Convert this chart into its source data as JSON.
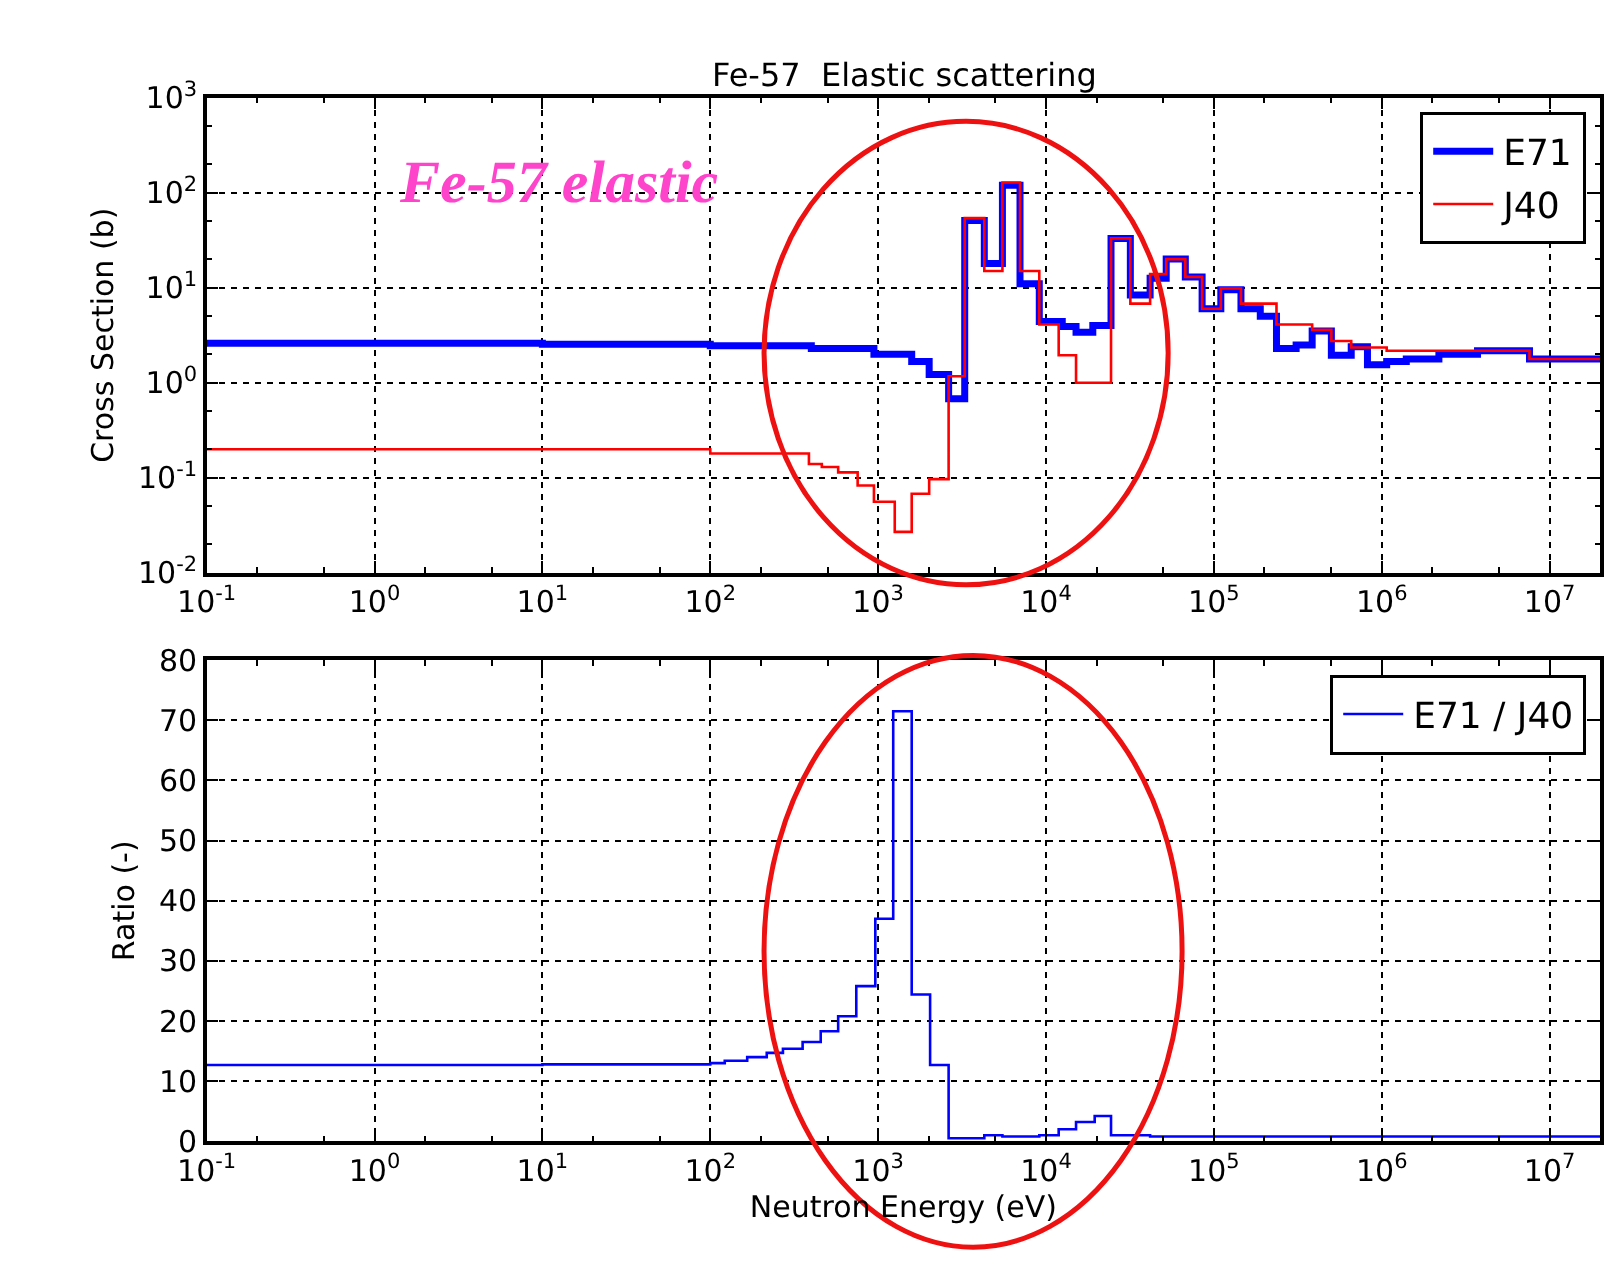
{
  "chart_data": [
    {
      "type": "step",
      "title": "Fe-57  Elastic scattering",
      "ylabel": "Cross Section (b)",
      "annotations": [
        "Fe-57 elastic"
      ],
      "series": [
        {
          "name": "E71",
          "color": "#0000ff",
          "x": [
            0.1,
            10,
            100,
            400,
            944,
            1585,
            2014,
            2630,
            3280,
            4290,
            5500,
            7000,
            9120,
            12500,
            15100,
            19000,
            24400,
            31800,
            41700,
            52000,
            67600,
            85100,
            110000,
            145000,
            189000,
            236000,
            309000,
            385000,
            501000,
            658000,
            822000,
            1070000,
            1400000,
            2190000,
            3720000,
            7590000,
            20000000
          ],
          "values": [
            2.6,
            2.55,
            2.45,
            2.3,
            2.0,
            1.67,
            1.22,
            0.68,
            51,
            18,
            120,
            11,
            4.4,
            3.9,
            3.4,
            4.0,
            33,
            8.4,
            12.6,
            20,
            13,
            6.0,
            9.5,
            6.0,
            5.0,
            2.3,
            2.5,
            3.5,
            1.95,
            2.4,
            1.55,
            1.67,
            1.78,
            2.0,
            2.17,
            1.78,
            1.78
          ]
        },
        {
          "name": "J40",
          "color": "#ff0000",
          "x": [
            0.1,
            10,
            100,
            387,
            462,
            578,
            755,
            944,
            1256,
            1585,
            2014,
            2630,
            3280,
            4290,
            5500,
            7000,
            9120,
            11900,
            15100,
            24400,
            31800,
            41700,
            52000,
            67600,
            85100,
            110000,
            145000,
            236000,
            385000,
            501000,
            658000,
            1070000,
            7590000,
            20000000
          ],
          "values": [
            0.2,
            0.2,
            0.18,
            0.14,
            0.13,
            0.114,
            0.083,
            0.056,
            0.027,
            0.068,
            0.097,
            1.17,
            54,
            15,
            128,
            15,
            4.1,
            1.95,
            1.0,
            33,
            6.8,
            13.9,
            20,
            13,
            6.0,
            9.8,
            6.8,
            4.1,
            3.6,
            2.75,
            2.35,
            2.17,
            1.78,
            1.78
          ]
        }
      ],
      "xlim": [
        0.1,
        20000000
      ],
      "xticks": [
        {
          "value": 0.1,
          "label": "10$^{-1}$"
        },
        {
          "value": 1,
          "label": "10$^{0}$"
        },
        {
          "value": 10,
          "label": "10$^{1}$"
        },
        {
          "value": 100,
          "label": "10$^{2}$"
        },
        {
          "value": 1000,
          "label": "10$^{3}$"
        },
        {
          "value": 10000,
          "label": "10$^{4}$"
        },
        {
          "value": 100000,
          "label": "10$^{5}$"
        },
        {
          "value": 1000000,
          "label": "10$^{6}$"
        },
        {
          "value": 10000000,
          "label": "10$^{7}$"
        }
      ],
      "ylim": [
        0.01,
        1000
      ],
      "yticks": [
        {
          "value": 0.01,
          "label": "10$^{-2}$"
        },
        {
          "value": 0.1,
          "label": "10$^{-1}$"
        },
        {
          "value": 1,
          "label": "10$^{0}$"
        },
        {
          "value": 10,
          "label": "10$^{1}$"
        },
        {
          "value": 100,
          "label": "10$^{2}$"
        },
        {
          "value": 1000,
          "label": "10$^{3}$"
        }
      ],
      "log": "xy",
      "grid": true,
      "legend": "top right"
    },
    {
      "type": "step",
      "xlabel": "Neutron Energy (eV)",
      "ylabel": "Ratio (-)",
      "series": [
        {
          "name": "E71 / J40",
          "color": "#0000ff",
          "x": [
            0.1,
            10,
            100,
            122,
            166,
            217,
            271,
            355,
            455,
            578,
            741,
            962,
            1230,
            1585,
            2040,
            2630,
            4290,
            5500,
            9120,
            11900,
            15100,
            19500,
            24400,
            41700,
            20000000
          ],
          "values": [
            12.7,
            12.8,
            13.0,
            13.4,
            14,
            14.7,
            15.4,
            16.5,
            18.3,
            20.8,
            25.8,
            37,
            71.5,
            24.4,
            12.7,
            0.5,
            1.0,
            0.8,
            1.0,
            2.0,
            3.2,
            4.2,
            1.0,
            0.8,
            0.8
          ]
        }
      ],
      "xlim": [
        0.1,
        20000000
      ],
      "xticks": [
        {
          "value": 0.1,
          "label": "10$^{-1}$"
        },
        {
          "value": 1,
          "label": "10$^{0}$"
        },
        {
          "value": 10,
          "label": "10$^{1}$"
        },
        {
          "value": 100,
          "label": "10$^{2}$"
        },
        {
          "value": 1000,
          "label": "10$^{3}$"
        },
        {
          "value": 10000,
          "label": "10$^{4}$"
        },
        {
          "value": 100000,
          "label": "10$^{5}$"
        },
        {
          "value": 1000000,
          "label": "10$^{6}$"
        },
        {
          "value": 10000000,
          "label": "10$^{7}$"
        }
      ],
      "ylim": [
        0,
        80
      ],
      "yticks": [
        0,
        10,
        20,
        30,
        40,
        50,
        60,
        70,
        80
      ],
      "log": "x",
      "grid": true,
      "legend": "top right"
    }
  ]
}
